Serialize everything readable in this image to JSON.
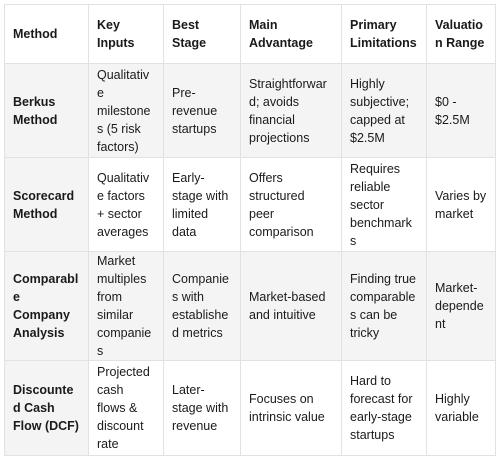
{
  "table": {
    "headers": [
      "Method",
      "Key Inputs",
      "Best Stage",
      "Main Advantage",
      "Primary Limitations",
      "Valuation Range"
    ],
    "rows": [
      {
        "method": "Berkus Method",
        "key_inputs": "Qualitative milestones (5 risk factors)",
        "best_stage": "Pre-revenue startups",
        "main_advantage": "Straightforward; avoids financial projections",
        "primary_limitations": "Highly subjective; capped at $2.5M",
        "valuation_range": "$0 - $2.5M"
      },
      {
        "method": "Scorecard Method",
        "key_inputs": "Qualitative factors + sector averages",
        "best_stage": "Early-stage with limited data",
        "main_advantage": "Offers structured peer comparison",
        "primary_limitations": "Requires reliable sector benchmarks",
        "valuation_range": "Varies by market"
      },
      {
        "method": "Comparable Company Analysis",
        "key_inputs": "Market multiples from similar companies",
        "best_stage": "Companies with established metrics",
        "main_advantage": "Market-based and intuitive",
        "primary_limitations": "Finding true comparables can be tricky",
        "valuation_range": "Market-dependent"
      },
      {
        "method": "Discounted Cash Flow (DCF)",
        "key_inputs": "Projected cash flows & discount rate",
        "best_stage": "Later-stage with revenue",
        "main_advantage": "Focuses on intrinsic value",
        "primary_limitations": "Hard to forecast for early-stage startups",
        "valuation_range": "Highly variable"
      }
    ]
  }
}
